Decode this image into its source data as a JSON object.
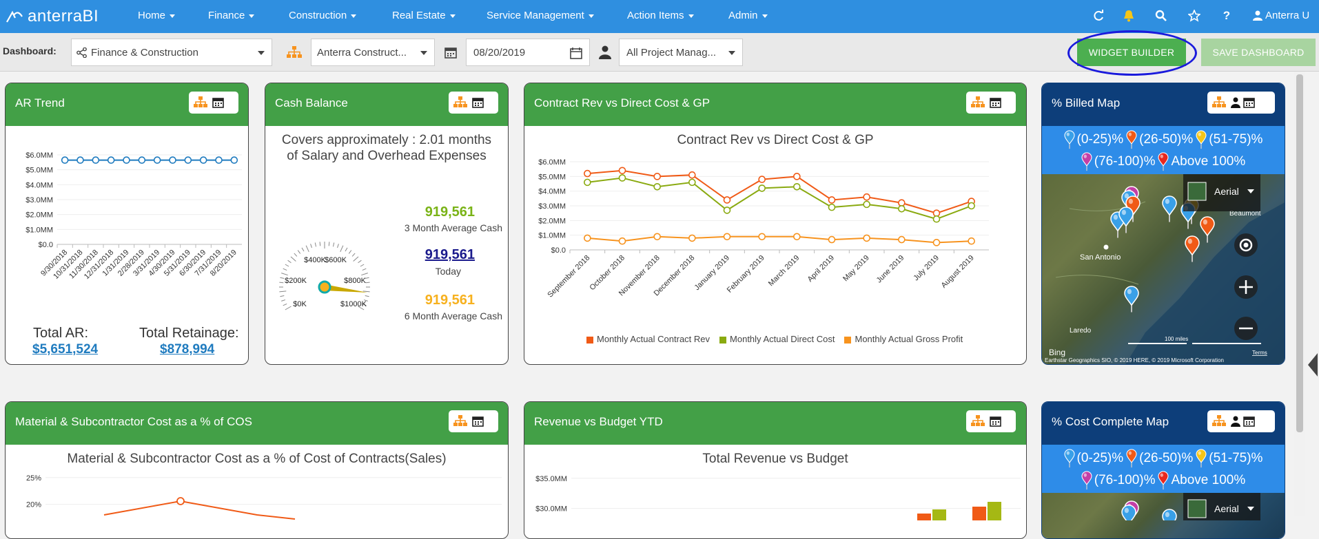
{
  "app": {
    "logo_text": "anterraBI"
  },
  "nav": {
    "items": [
      "Home",
      "Finance",
      "Construction",
      "Real Estate",
      "Service Management",
      "Action Items",
      "Admin"
    ],
    "user": "Anterra U"
  },
  "toolbar": {
    "dashboard_label": "Dashboard:",
    "dashboard_value": "Finance & Construction",
    "company_value": "Anterra Construct...",
    "date_value": "08/20/2019",
    "manager_value": "All Project Manag...",
    "widget_builder": "WIDGET BUILDER",
    "save_dashboard": "SAVE DASHBOARD"
  },
  "colors": {
    "nav": "#2f8fe0",
    "widget_header": "#43a047",
    "map_header": "#0d3e7a",
    "highlight": "#1a1adc"
  },
  "widgets": {
    "ar_trend": {
      "title": "AR Trend",
      "total_ar_label": "Total AR:",
      "total_ar_value": "$5,651,524",
      "total_ret_label": "Total Retainage:",
      "total_ret_value": "$878,994"
    },
    "cash_balance": {
      "title": "Cash Balance",
      "subtitle_line1": "Covers approximately : 2.01 months",
      "subtitle_line2": "of Salary and Overhead Expenses",
      "v1": "919,561",
      "l1": "3 Month Average Cash",
      "v2": "919,561",
      "l2": "Today",
      "v3": "919,561",
      "l3": "6 Month Average Cash",
      "gauge_labels": [
        "$0K",
        "$200K",
        "$400K",
        "$600K",
        "$800K",
        "$1000K"
      ]
    },
    "contract_rev": {
      "title": "Contract Rev vs Direct Cost & GP",
      "chart_title": "Contract Rev vs Direct Cost & GP"
    },
    "billed_map": {
      "title": "% Billed Map",
      "legend": [
        "(0-25)%",
        "(26-50)%",
        "(51-75)%",
        "(76-100)%",
        "Above 100%"
      ],
      "map_type": "Aerial",
      "labels": [
        "San Antonio",
        "Beaumont",
        "Laredo"
      ],
      "scale": "100 miles",
      "bing": "Bing",
      "terms": "Terms",
      "copyright": "Earthstar Geographics SIO, © 2019 HERE, © 2019 Microsoft Corporation"
    },
    "material": {
      "title": "Material & Subcontractor Cost as a % of COS",
      "chart_title": "Material & Subcontractor Cost as a % of Cost of Contracts(Sales)"
    },
    "revenue_budget": {
      "title": "Revenue vs Budget YTD",
      "chart_title": "Total Revenue vs Budget"
    },
    "cost_map": {
      "title": "% Cost Complete Map",
      "legend": [
        "(0-25)%",
        "(26-50)%",
        "(51-75)%",
        "(76-100)%",
        "Above 100%"
      ],
      "map_type": "Aerial"
    }
  },
  "chart_data": [
    {
      "type": "line",
      "id": "ar_trend",
      "x": [
        "9/30/2018",
        "10/31/2018",
        "11/30/2018",
        "12/31/2018",
        "1/31/2019",
        "2/28/2019",
        "3/31/2019",
        "4/30/2019",
        "5/31/2019",
        "6/30/2019",
        "7/31/2019",
        "8/20/2019"
      ],
      "series": [
        {
          "values": [
            5.65,
            5.65,
            5.65,
            5.65,
            5.65,
            5.65,
            5.65,
            5.65,
            5.65,
            5.65,
            5.65,
            5.65
          ],
          "color": "#1f7bbf"
        }
      ],
      "yticks": [
        "$0.0",
        "$1.0MM",
        "$2.0MM",
        "$3.0MM",
        "$4.0MM",
        "$5.0MM",
        "$6.0MM"
      ],
      "ylim": [
        0,
        6
      ]
    },
    {
      "type": "line",
      "id": "contract_rev",
      "title": "Contract Rev vs Direct Cost & GP",
      "x": [
        "September 2018",
        "October 2018",
        "November 2018",
        "December 2018",
        "January 2019",
        "February 2019",
        "March 2019",
        "April 2019",
        "May 2019",
        "June 2019",
        "July 2019",
        "August 2019"
      ],
      "series": [
        {
          "name": "Monthly Actual Contract Rev",
          "color": "#f05a16",
          "values": [
            5.2,
            5.4,
            5.0,
            5.1,
            3.4,
            4.8,
            5.0,
            3.4,
            3.6,
            3.2,
            2.5,
            3.3
          ]
        },
        {
          "name": "Monthly Actual Direct Cost",
          "color": "#8aaa10",
          "values": [
            4.6,
            4.9,
            4.3,
            4.6,
            2.7,
            4.2,
            4.3,
            2.9,
            3.1,
            2.8,
            2.1,
            3.0
          ]
        },
        {
          "name": "Monthly Actual Gross Profit",
          "color": "#f7931e",
          "values": [
            0.8,
            0.6,
            0.9,
            0.8,
            0.9,
            0.9,
            0.9,
            0.7,
            0.8,
            0.7,
            0.5,
            0.6
          ]
        }
      ],
      "yticks": [
        "$0.0",
        "$1.0MM",
        "$2.0MM",
        "$3.0MM",
        "$4.0MM",
        "$5.0MM",
        "$6.0MM"
      ],
      "ylim": [
        0,
        6
      ],
      "legend": "bottom"
    },
    {
      "type": "line",
      "id": "material",
      "yticks": [
        "20%",
        "25%"
      ],
      "ylim": [
        17,
        26
      ]
    },
    {
      "type": "bar",
      "id": "revenue_budget",
      "yticks": [
        "$30.0MM",
        "$35.0MM"
      ],
      "ylim": [
        28,
        36
      ]
    }
  ]
}
